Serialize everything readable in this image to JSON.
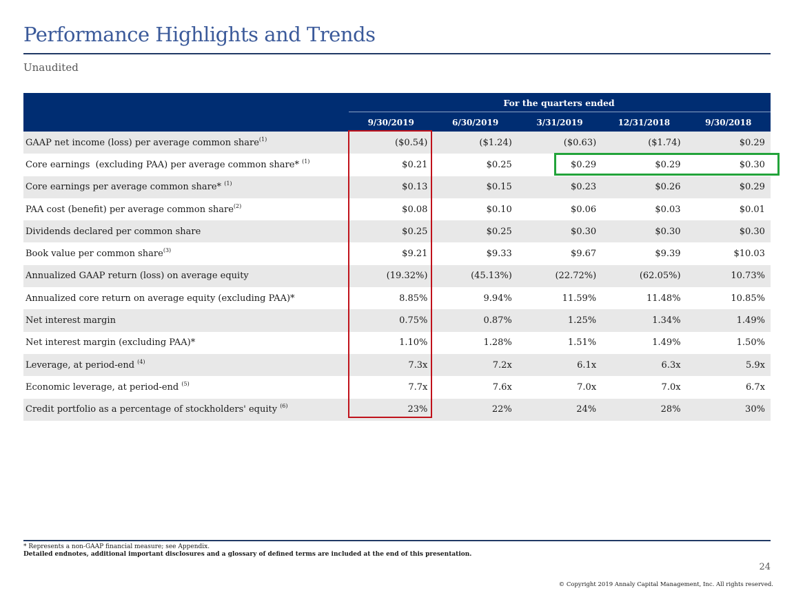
{
  "header": {
    "title": "Performance Highlights and Trends",
    "subtitle": "Unaudited"
  },
  "table": {
    "group_label": "For the quarters ended",
    "columns": [
      "9/30/2019",
      "6/30/2019",
      "3/31/2019",
      "12/31/2018",
      "9/30/2018"
    ],
    "rows": [
      {
        "label": "GAAP net income (loss) per average common share",
        "sup": "(1)",
        "values": [
          "($0.54)",
          "($1.24)",
          "($0.63)",
          "($1.74)",
          "$0.29"
        ]
      },
      {
        "label": "Core earnings  (excluding PAA) per average common share* ",
        "sup": "(1)",
        "values": [
          "$0.21",
          "$0.25",
          "$0.29",
          "$0.29",
          "$0.30"
        ]
      },
      {
        "label": "Core earnings per average common share* ",
        "sup": "(1)",
        "values": [
          "$0.13",
          "$0.15",
          "$0.23",
          "$0.26",
          "$0.29"
        ]
      },
      {
        "label": "PAA cost (benefit) per average common share",
        "sup": "(2)",
        "values": [
          "$0.08",
          "$0.10",
          "$0.06",
          "$0.03",
          "$0.01"
        ]
      },
      {
        "label": "Dividends declared per common share",
        "sup": "",
        "values": [
          "$0.25",
          "$0.25",
          "$0.30",
          "$0.30",
          "$0.30"
        ]
      },
      {
        "label": "Book value per common share",
        "sup": "(3)",
        "values": [
          "$9.21",
          "$9.33",
          "$9.67",
          "$9.39",
          "$10.03"
        ]
      },
      {
        "label": "Annualized GAAP return (loss) on average equity",
        "sup": "",
        "values": [
          "(19.32%)",
          "(45.13%)",
          "(22.72%)",
          "(62.05%)",
          "10.73%"
        ]
      },
      {
        "label": "Annualized core return on average equity (excluding PAA)*",
        "sup": "",
        "values": [
          "8.85%",
          "9.94%",
          "11.59%",
          "11.48%",
          "10.85%"
        ]
      },
      {
        "label": "Net interest margin",
        "sup": "",
        "values": [
          "0.75%",
          "0.87%",
          "1.25%",
          "1.34%",
          "1.49%"
        ]
      },
      {
        "label": "Net interest margin (excluding PAA)*",
        "sup": "",
        "values": [
          "1.10%",
          "1.28%",
          "1.51%",
          "1.49%",
          "1.50%"
        ]
      },
      {
        "label": "Leverage, at period-end ",
        "sup": "(4)",
        "values": [
          "7.3x",
          "7.2x",
          "6.1x",
          "6.3x",
          "5.9x"
        ]
      },
      {
        "label": "Economic leverage, at period-end ",
        "sup": "(5)",
        "values": [
          "7.7x",
          "7.6x",
          "7.0x",
          "7.0x",
          "6.7x"
        ]
      },
      {
        "label": "Credit portfolio as a percentage of stockholders' equity ",
        "sup": "(6)",
        "values": [
          "23%",
          "22%",
          "24%",
          "28%",
          "30%"
        ]
      }
    ]
  },
  "footer": {
    "note_nongaap": "* Represents a non-GAAP financial measure; see Appendix.",
    "note_endnotes": "Detailed endnotes, additional important disclosures and a glossary of defined terms are included at the end of this presentation.",
    "page_number": "24",
    "copyright": "© Copyright 2019 Annaly Capital Management, Inc.  All rights reserved."
  },
  "colors": {
    "title": "#3b5a9a",
    "header_band": "#002d72",
    "highlight_red": "#c0111a",
    "highlight_green": "#22a33a"
  }
}
